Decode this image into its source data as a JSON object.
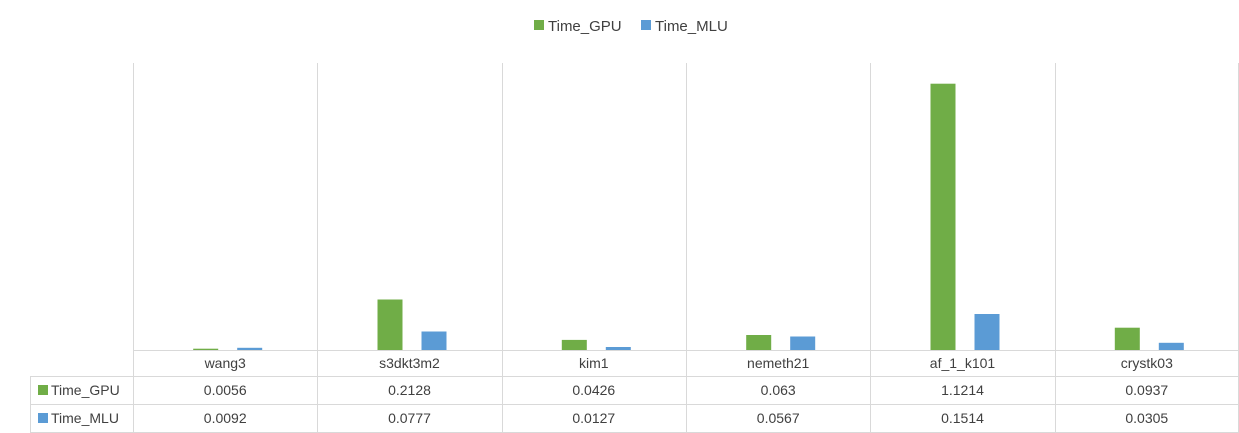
{
  "chart_data": {
    "type": "bar",
    "categories": [
      "wang3",
      "s3dkt3m2",
      "kim1",
      "nemeth21",
      "af_1_k101",
      "crystk03"
    ],
    "series": [
      {
        "name": "Time_GPU",
        "color": "#70ad47",
        "values": [
          0.0056,
          0.2128,
          0.0426,
          0.063,
          1.1214,
          0.0937
        ],
        "labels": [
          "0.0056",
          "0.2128",
          "0.0426",
          "0.063",
          "1.1214",
          "0.0937"
        ]
      },
      {
        "name": "Time_MLU",
        "color": "#5b9bd5",
        "values": [
          0.0092,
          0.0777,
          0.0127,
          0.0567,
          0.1514,
          0.0305
        ],
        "labels": [
          "0.0092",
          "0.0777",
          "0.0127",
          "0.0567",
          "0.1514",
          "0.0305"
        ]
      }
    ],
    "ylim": [
      0,
      1.2
    ],
    "legend_position": "top",
    "data_table": true,
    "grid": "vertical category separators"
  }
}
